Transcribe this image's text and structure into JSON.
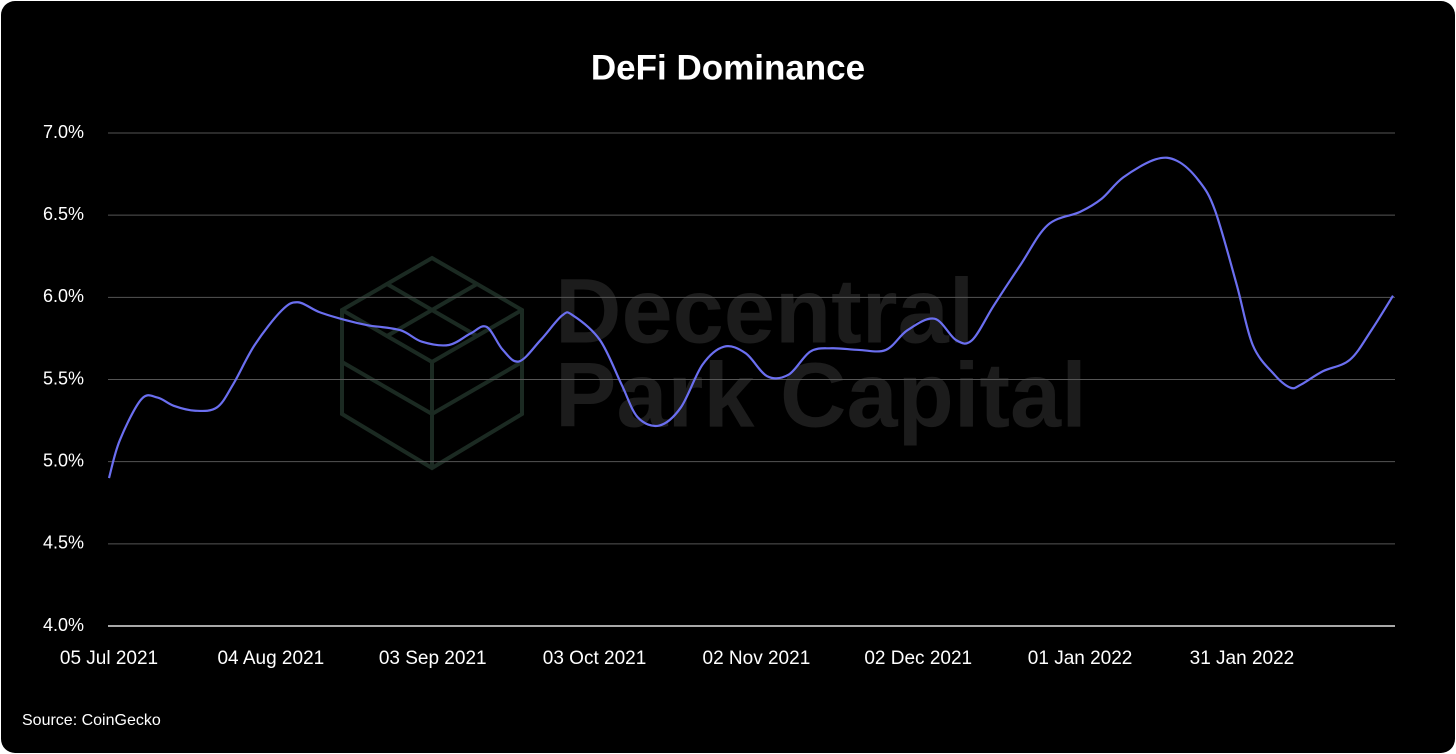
{
  "chart_data": {
    "type": "line",
    "title": "DeFi Dominance",
    "source": "Source: CoinGecko",
    "watermark": [
      "Decentral",
      "Park Capital"
    ],
    "x": [
      "2021-07-05",
      "2021-07-07",
      "2021-07-11",
      "2021-07-14",
      "2021-07-17",
      "2021-07-21",
      "2021-07-25",
      "2021-07-28",
      "2021-08-01",
      "2021-08-06",
      "2021-08-09",
      "2021-08-13",
      "2021-08-18",
      "2021-08-22",
      "2021-08-28",
      "2021-09-01",
      "2021-09-06",
      "2021-09-10",
      "2021-09-13",
      "2021-09-16",
      "2021-09-19",
      "2021-09-23",
      "2021-09-27",
      "2021-09-29",
      "2021-10-04",
      "2021-10-08",
      "2021-10-11",
      "2021-10-15",
      "2021-10-19",
      "2021-10-23",
      "2021-10-27",
      "2021-10-31",
      "2021-11-04",
      "2021-11-08",
      "2021-11-12",
      "2021-11-16",
      "2021-11-21",
      "2021-11-26",
      "2021-11-30",
      "2021-12-05",
      "2021-12-09",
      "2021-12-12",
      "2021-12-16",
      "2021-12-21",
      "2021-12-26",
      "2022-01-01",
      "2022-01-05",
      "2022-01-09",
      "2022-01-15",
      "2022-01-19",
      "2022-01-23",
      "2022-01-26",
      "2022-01-30",
      "2022-02-02",
      "2022-02-06",
      "2022-02-09",
      "2022-02-11",
      "2022-02-15",
      "2022-02-20",
      "2022-02-24",
      "2022-02-28"
    ],
    "series": [
      {
        "name": "DeFi Dominance",
        "color": "#6b6ff0",
        "values": [
          4.9,
          5.13,
          5.38,
          5.39,
          5.34,
          5.31,
          5.33,
          5.47,
          5.71,
          5.92,
          5.97,
          5.91,
          5.86,
          5.83,
          5.8,
          5.73,
          5.71,
          5.78,
          5.82,
          5.68,
          5.61,
          5.74,
          5.89,
          5.89,
          5.74,
          5.47,
          5.27,
          5.22,
          5.33,
          5.59,
          5.7,
          5.66,
          5.52,
          5.53,
          5.67,
          5.69,
          5.68,
          5.68,
          5.8,
          5.87,
          5.74,
          5.74,
          5.95,
          6.2,
          6.44,
          6.52,
          6.6,
          6.73,
          6.84,
          6.83,
          6.71,
          6.53,
          6.08,
          5.71,
          5.53,
          5.45,
          5.47,
          5.55,
          5.62,
          5.8,
          6.01
        ]
      }
    ],
    "xlim": [
      "2021-07-05",
      "2022-02-28"
    ],
    "xticks": [
      {
        "value": "2021-07-05",
        "label": "05 Jul 2021"
      },
      {
        "value": "2021-08-04",
        "label": "04 Aug 2021"
      },
      {
        "value": "2021-09-03",
        "label": "03 Sep 2021"
      },
      {
        "value": "2021-10-03",
        "label": "03 Oct 2021"
      },
      {
        "value": "2021-11-02",
        "label": "02 Nov 2021"
      },
      {
        "value": "2021-12-02",
        "label": "02 Dec 2021"
      },
      {
        "value": "2022-01-01",
        "label": "01 Jan 2022"
      },
      {
        "value": "2022-01-31",
        "label": "31 Jan 2022"
      }
    ],
    "ylim": [
      4,
      7
    ],
    "yticks": [
      {
        "value": 4,
        "label": "4.0%"
      },
      {
        "value": 4.5,
        "label": "4.5%"
      },
      {
        "value": 5,
        "label": "5.0%"
      },
      {
        "value": 5.5,
        "label": "5.5%"
      },
      {
        "value": 6,
        "label": "6.0%"
      },
      {
        "value": 6.5,
        "label": "6.5%"
      },
      {
        "value": 7,
        "label": "7.0%"
      }
    ],
    "grid": true
  }
}
